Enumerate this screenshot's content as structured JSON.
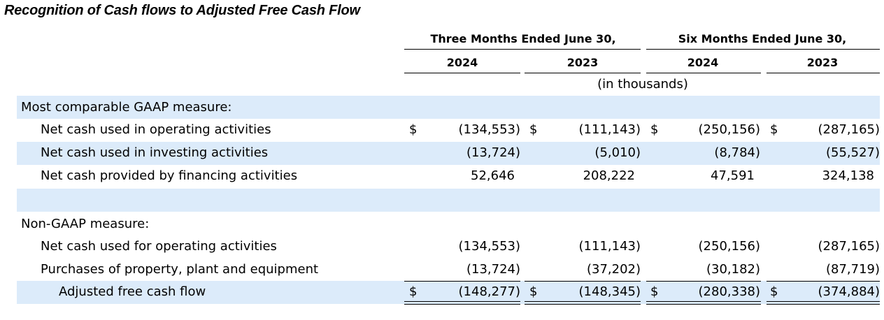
{
  "title": "Recognition of Cash flows to Adjusted Free Cash Flow",
  "headers": {
    "three_months": "Three Months Ended June 30,",
    "six_months": "Six Months Ended June 30,",
    "years": [
      "2024",
      "2023",
      "2024",
      "2023"
    ],
    "units": "(in thousands)"
  },
  "sections": {
    "gaap": {
      "label": "Most comparable GAAP measure:",
      "rows": [
        {
          "label": "Net cash used in operating activities",
          "currency": "$",
          "values": [
            "(134,553)",
            "(111,143)",
            "(250,156)",
            "(287,165)"
          ]
        },
        {
          "label": "Net cash used in investing activities",
          "values": [
            "(13,724)",
            "(5,010)",
            "(8,784)",
            "(55,527)"
          ]
        },
        {
          "label": "Net cash provided by financing activities",
          "values": [
            "52,646",
            "208,222",
            "47,591",
            "324,138"
          ]
        }
      ]
    },
    "non_gaap": {
      "label": "Non-GAAP measure:",
      "rows": [
        {
          "label": "Net cash used for operating activities",
          "values": [
            "(134,553)",
            "(111,143)",
            "(250,156)",
            "(287,165)"
          ]
        },
        {
          "label": "Purchases of property, plant and equipment",
          "values": [
            "(13,724)",
            "(37,202)",
            "(30,182)",
            "(87,719)"
          ]
        },
        {
          "label": "Adjusted free cash flow",
          "currency": "$",
          "values": [
            "(148,277)",
            "(148,345)",
            "(280,338)",
            "(374,884)"
          ]
        }
      ]
    }
  }
}
